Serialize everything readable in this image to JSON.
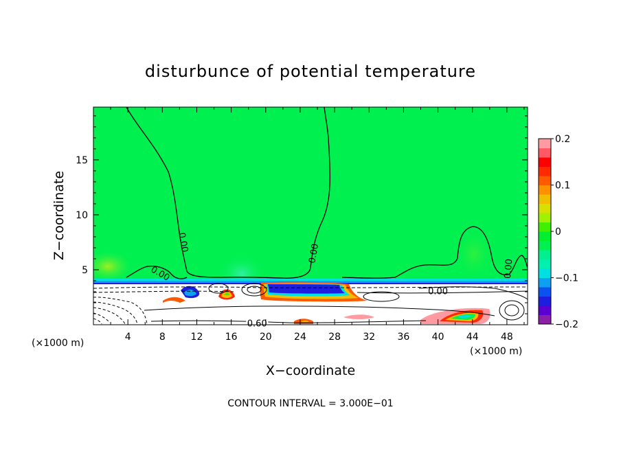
{
  "chart_data": {
    "type": "heatmap",
    "title": "disturbunce of potential temperature",
    "xlabel": "X−coordinate",
    "ylabel": "Z−coordinate",
    "x_unit": "(×1000 m)",
    "y_unit": "(×1000 m)",
    "xlim": [
      0,
      50.4
    ],
    "ylim": [
      0,
      19.8
    ],
    "x_ticks": [
      4,
      8,
      12,
      16,
      20,
      24,
      28,
      32,
      36,
      40,
      44,
      48
    ],
    "y_ticks": [
      5,
      10,
      15
    ],
    "colorbar": {
      "range": [
        -0.2,
        0.2
      ],
      "tick_labels": [
        "0.2",
        "0.1",
        "0",
        "−0.1",
        "−0.2"
      ],
      "tick_values": [
        0.2,
        0.1,
        0,
        -0.1,
        -0.2
      ],
      "colors": [
        "#8b1fa8",
        "#5a00d0",
        "#1e1ee0",
        "#0b52f0",
        "#0ea0f0",
        "#00e0e0",
        "#00f0b0",
        "#00f090",
        "#00f050",
        "#00f030",
        "#40f000",
        "#a0f000",
        "#d8e000",
        "#f0c000",
        "#ff9000",
        "#ff5a00",
        "#ff2a00",
        "#ff0000",
        "#ff5a64",
        "#ff9aa0"
      ]
    },
    "background_value": 0.0,
    "contour_labels": [
      {
        "text": "0.00",
        "x": 10.5,
        "z": 7.5,
        "angle": 80
      },
      {
        "text": "0.00",
        "x": 25.5,
        "z": 6.5,
        "angle": -80
      },
      {
        "text": "0.00",
        "x": 7.8,
        "z": 4.7,
        "angle": 30
      },
      {
        "text": "0.00",
        "x": 48.1,
        "z": 5.1,
        "angle": -85
      },
      {
        "text": "0.00",
        "x": 40.0,
        "z": 3.1,
        "angle": 0
      },
      {
        "text": "0.60",
        "x": 19.0,
        "z": 0.15,
        "angle": 0
      }
    ],
    "contour_interval": "CONTOUR INTERVAL = 3.000E−01"
  }
}
